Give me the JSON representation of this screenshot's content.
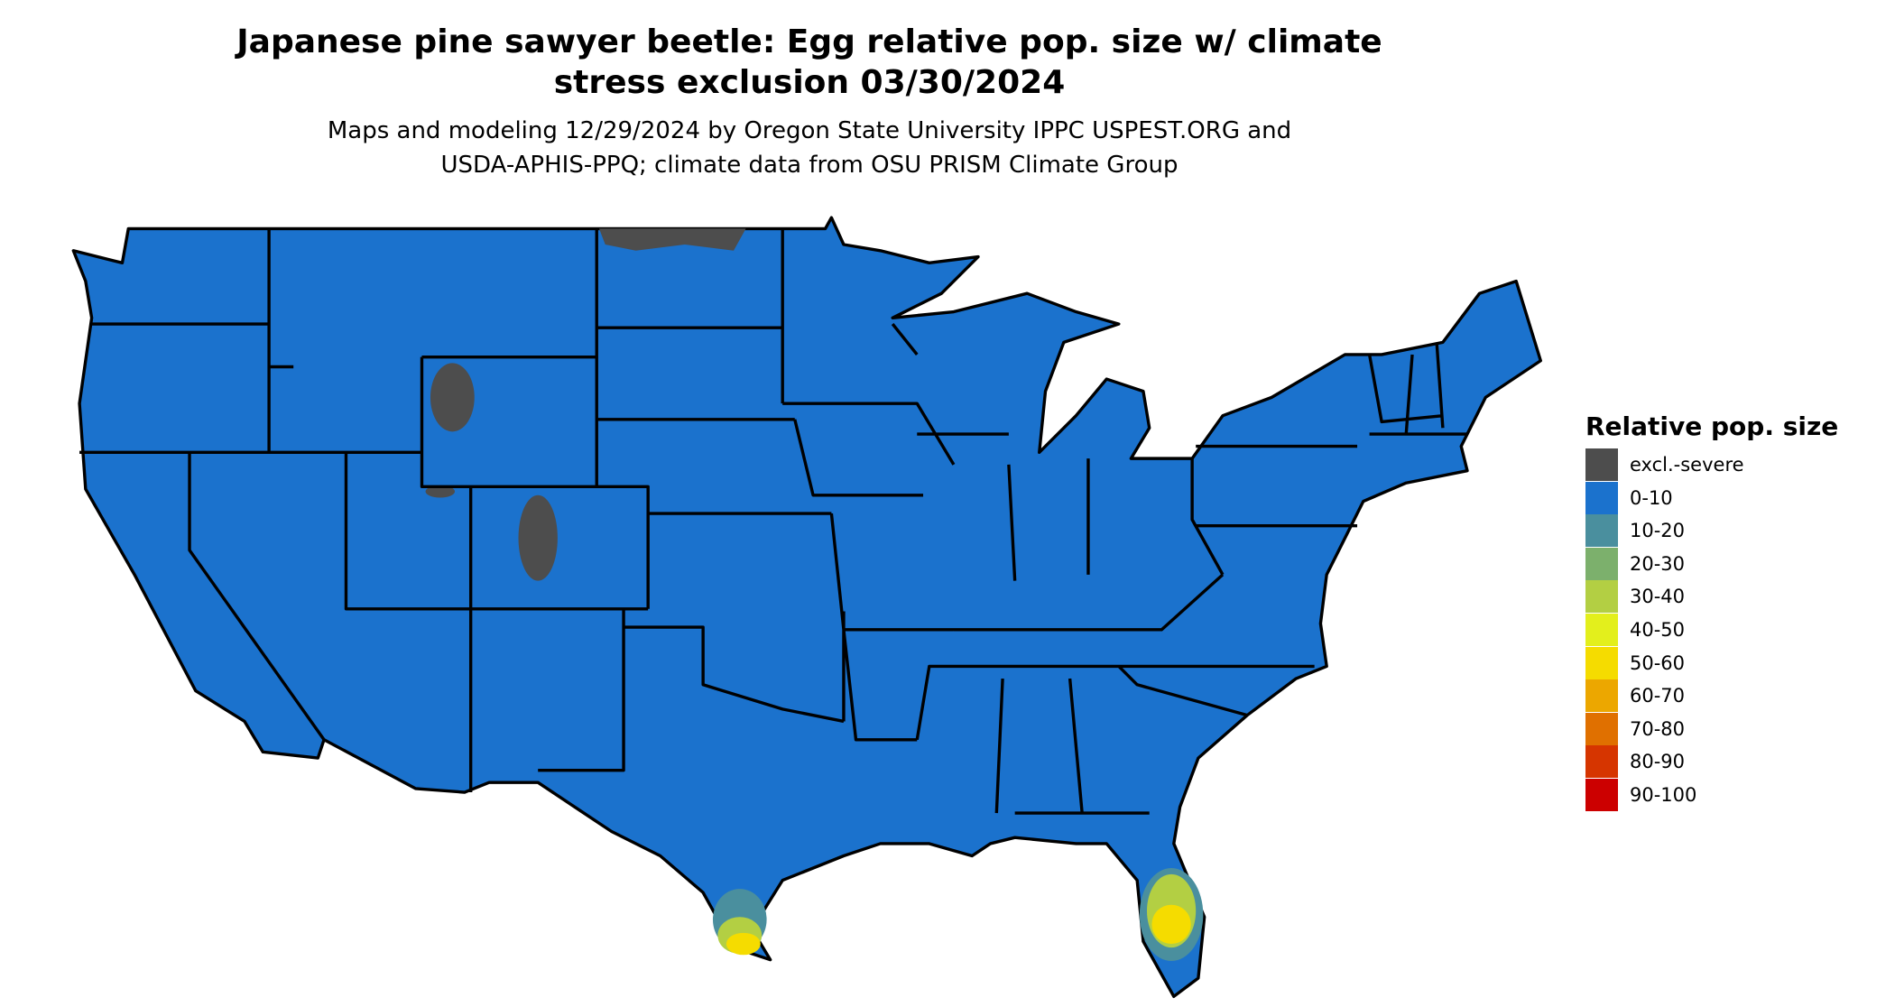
{
  "header": {
    "title": [
      "Japanese pine sawyer beetle: Egg relative pop. size w/ climate",
      "stress exclusion 03/30/2024"
    ],
    "subtitle": [
      "Maps and modeling 12/29/2024 by Oregon State University IPPC USPEST.ORG and",
      "USDA-APHIS-PPQ; climate data from OSU PRISM Climate Group"
    ]
  },
  "legend": {
    "title": "Relative pop. size",
    "items": [
      {
        "label": "excl.-severe",
        "color": "#4d4d4d"
      },
      {
        "label": "0-10",
        "color": "#1b72cd"
      },
      {
        "label": "10-20",
        "color": "#4a8f9e"
      },
      {
        "label": "20-30",
        "color": "#7cb06c"
      },
      {
        "label": "30-40",
        "color": "#b3cf43"
      },
      {
        "label": "40-50",
        "color": "#e3ef1c"
      },
      {
        "label": "50-60",
        "color": "#f5dc00"
      },
      {
        "label": "60-70",
        "color": "#eca700"
      },
      {
        "label": "70-80",
        "color": "#e07000"
      },
      {
        "label": "80-90",
        "color": "#d63500"
      },
      {
        "label": "90-100",
        "color": "#cc0000"
      }
    ]
  }
}
